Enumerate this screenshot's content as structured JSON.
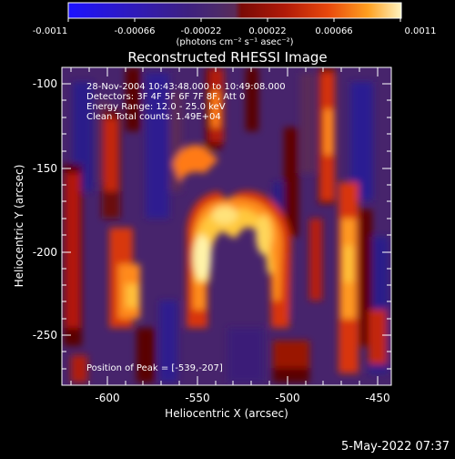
{
  "colorbar": {
    "tick_labels": [
      "-0.0011",
      "-0.00066",
      "-0.00022",
      "0.00022",
      "0.00066",
      "0.0011"
    ],
    "units_label": "(photons cm⁻² s⁻¹ asec⁻²)",
    "colors": [
      "#1c12ff",
      "#2a18c8",
      "#3a1e82",
      "#4b2a6e",
      "#5a2a58",
      "#7a0a06",
      "#b01a08",
      "#e03c0a",
      "#ff7d18",
      "#ffbe2a",
      "#fff0a0"
    ]
  },
  "plot": {
    "title": "Reconstructed RHESSI Image",
    "xlabel": "Heliocentric X (arcsec)",
    "ylabel": "Heliocentric Y (arcsec)",
    "x_ticks": [
      "-600",
      "-550",
      "-500",
      "-450"
    ],
    "y_ticks": [
      "-100",
      "-150",
      "-200",
      "-250"
    ],
    "info_lines": [
      "28-Nov-2004 10:43:48.000 to 10:49:08.000",
      "Detectors: 3F 4F 5F 6F 7F 8F, Att 0",
      "Energy Range: 12.0 - 25.0 keV",
      "Clean     Total counts: 1.49E+04"
    ],
    "peak_label": "Position of Peak = [-539,-207]"
  },
  "footer": {
    "date_label": "5-May-2022 07:37"
  },
  "palette": {
    "background": "#000000",
    "low": "#3b1f7a",
    "mid": "#5b2a5e",
    "hot": "#ff6a10",
    "peak": "#fff090"
  }
}
